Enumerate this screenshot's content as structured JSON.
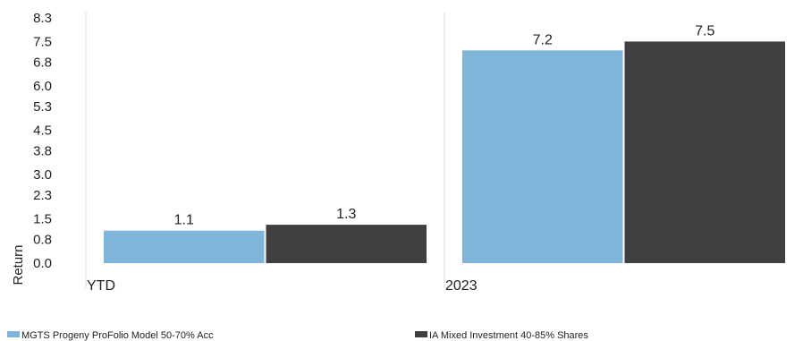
{
  "chart_data": {
    "type": "bar",
    "categories": [
      "YTD",
      "2023"
    ],
    "series": [
      {
        "name": "MGTS Progeny ProFolio Model 50-70% Acc",
        "color": "#7fb5d9",
        "values": [
          1.1,
          7.2
        ]
      },
      {
        "name": "IA Mixed Investment 40-85% Shares",
        "color": "#404040",
        "values": [
          1.3,
          7.5
        ]
      }
    ],
    "ylabel": "Return",
    "ylim": [
      0.0,
      8.3
    ],
    "yticks": [
      "0.0",
      "0.8",
      "1.5",
      "2.3",
      "3.0",
      "3.8",
      "4.5",
      "5.3",
      "6.0",
      "6.8",
      "7.5",
      "8.3"
    ],
    "data_labels": [
      [
        "1.1",
        "7.2"
      ],
      [
        "1.3",
        "7.5"
      ]
    ],
    "grid": "vertical-separators",
    "legend": "bottom"
  }
}
